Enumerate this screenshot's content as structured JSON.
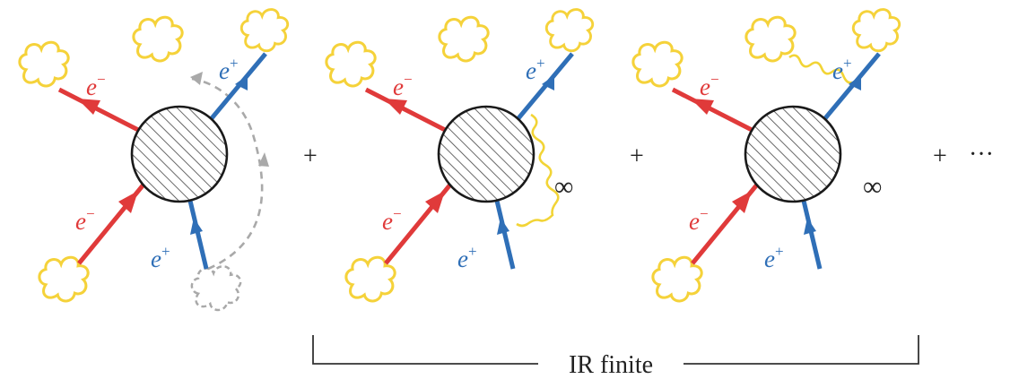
{
  "colors": {
    "electron": "#e03a3a",
    "positron": "#2f6fb7",
    "cloud": "#f5d23a",
    "photon": "#f2d436",
    "ghost": "#a9a9a9",
    "blob_fill": "#4a4a4a",
    "text": "#222222"
  },
  "labels": {
    "electron": "e",
    "electron_sign": "−",
    "positron": "e",
    "positron_sign": "+"
  },
  "operators": {
    "plus": "+",
    "ellipsis": "···"
  },
  "divergence_symbol": "∞",
  "bracket_label": "IR finite",
  "icons": {
    "cloud": "soft-photon-cloud-icon",
    "blob": "hatched-vertex-blob-icon"
  }
}
